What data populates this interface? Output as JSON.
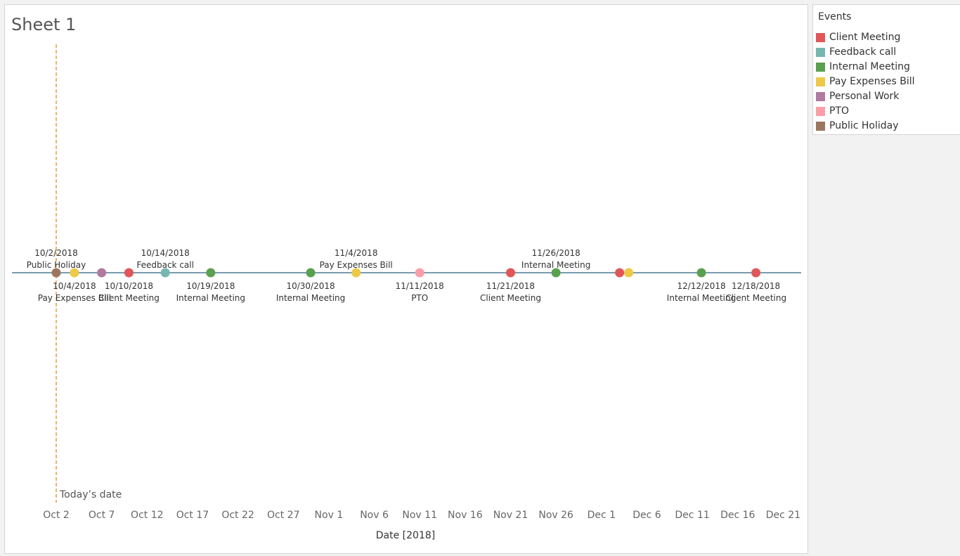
{
  "sheet": {
    "title": "Sheet 1"
  },
  "legend": {
    "title": "Events",
    "items": [
      {
        "label": "Client Meeting",
        "color": "#e15759"
      },
      {
        "label": "Feedback call",
        "color": "#76b7b2"
      },
      {
        "label": "Internal Meeting",
        "color": "#59a14f"
      },
      {
        "label": "Pay Expenses Bill",
        "color": "#edc948"
      },
      {
        "label": "Personal Work",
        "color": "#b07aa1"
      },
      {
        "label": "PTO",
        "color": "#ff9da7"
      },
      {
        "label": "Public Holiday",
        "color": "#9c755f"
      }
    ]
  },
  "chart_data": {
    "type": "scatter",
    "xlabel": "Date [2018]",
    "x_ticks": [
      "Oct 2",
      "Oct 7",
      "Oct 12",
      "Oct 17",
      "Oct 22",
      "Oct 27",
      "Nov 1",
      "Nov 6",
      "Nov 11",
      "Nov 16",
      "Nov 21",
      "Nov 26",
      "Dec 1",
      "Dec 6",
      "Dec 11",
      "Dec 16",
      "Dec 21"
    ],
    "x_tick_dates": [
      "2018-10-02",
      "2018-10-07",
      "2018-10-12",
      "2018-10-17",
      "2018-10-22",
      "2018-10-27",
      "2018-11-01",
      "2018-11-06",
      "2018-11-11",
      "2018-11-16",
      "2018-11-21",
      "2018-11-26",
      "2018-12-01",
      "2018-12-06",
      "2018-12-11",
      "2018-12-16",
      "2018-12-21"
    ],
    "reference_line": {
      "date": "2018-10-02",
      "label": "Today’s date",
      "color": "#e8993e"
    },
    "timeline_color": "#4e7894",
    "events": [
      {
        "date": "2018-10-02",
        "category": "Public Holiday",
        "date_label": "10/2/2018",
        "event_label": "Public Holiday",
        "label_position": "above"
      },
      {
        "date": "2018-10-04",
        "category": "Pay Expenses Bill",
        "date_label": "10/4/2018",
        "event_label": "Pay Expenses Bill",
        "label_position": "below"
      },
      {
        "date": "2018-10-07",
        "category": "Personal Work",
        "date_label": "",
        "event_label": "",
        "label_position": "none"
      },
      {
        "date": "2018-10-10",
        "category": "Client Meeting",
        "date_label": "10/10/2018",
        "event_label": "Client Meeting",
        "label_position": "below"
      },
      {
        "date": "2018-10-14",
        "category": "Feedback call",
        "date_label": "10/14/2018",
        "event_label": "Feedback call",
        "label_position": "above"
      },
      {
        "date": "2018-10-19",
        "category": "Internal Meeting",
        "date_label": "10/19/2018",
        "event_label": "Internal Meeting",
        "label_position": "below"
      },
      {
        "date": "2018-10-30",
        "category": "Internal Meeting",
        "date_label": "10/30/2018",
        "event_label": "Internal Meeting",
        "label_position": "below"
      },
      {
        "date": "2018-11-04",
        "category": "Pay Expenses Bill",
        "date_label": "11/4/2018",
        "event_label": "Pay Expenses Bill",
        "label_position": "above"
      },
      {
        "date": "2018-11-11",
        "category": "PTO",
        "date_label": "11/11/2018",
        "event_label": "PTO",
        "label_position": "below"
      },
      {
        "date": "2018-11-21",
        "category": "Client Meeting",
        "date_label": "11/21/2018",
        "event_label": "Client Meeting",
        "label_position": "below"
      },
      {
        "date": "2018-11-26",
        "category": "Internal Meeting",
        "date_label": "11/26/2018",
        "event_label": "Internal Meeting",
        "label_position": "above"
      },
      {
        "date": "2018-12-03",
        "category": "Client Meeting",
        "date_label": "",
        "event_label": "",
        "label_position": "none"
      },
      {
        "date": "2018-12-04",
        "category": "Pay Expenses Bill",
        "date_label": "",
        "event_label": "",
        "label_position": "none"
      },
      {
        "date": "2018-12-12",
        "category": "Internal Meeting",
        "date_label": "12/12/2018",
        "event_label": "Internal Meeting",
        "label_position": "below"
      },
      {
        "date": "2018-12-18",
        "category": "Client Meeting",
        "date_label": "12/18/2018",
        "event_label": "Client Meeting",
        "label_position": "below"
      }
    ]
  }
}
